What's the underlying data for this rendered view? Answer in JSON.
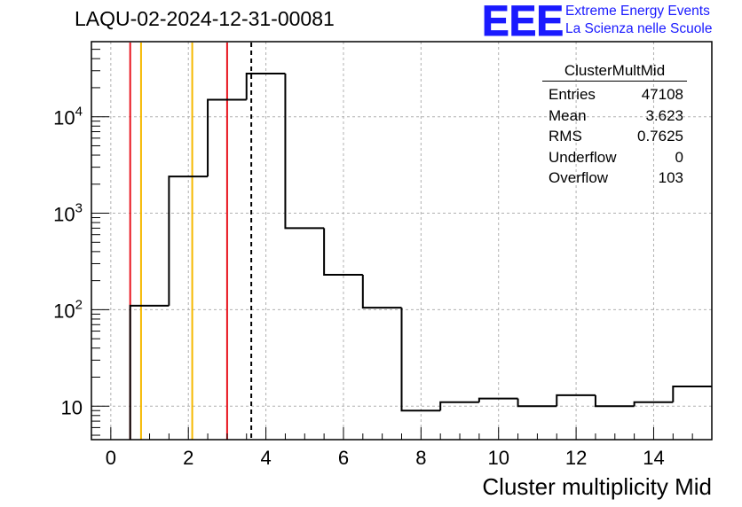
{
  "title": "LAQU-02-2024-12-31-00081",
  "logo": {
    "mark": "EEE",
    "line1": "Extreme Energy Events",
    "line2": "La Scienza nelle Scuole",
    "color": "#1a1aff"
  },
  "stats_box": {
    "name": "ClusterMultMid",
    "rows": [
      {
        "label": "Entries",
        "value": "47108"
      },
      {
        "label": "Mean",
        "value": "3.623"
      },
      {
        "label": "RMS",
        "value": "0.7625"
      },
      {
        "label": "Underflow",
        "value": "0"
      },
      {
        "label": "Overflow",
        "value": "103"
      }
    ]
  },
  "chart_data": {
    "type": "histogram",
    "xlabel": "Cluster multiplicity Mid",
    "ylabel": "",
    "xlim": [
      -0.5,
      15.5
    ],
    "ylim": [
      4.5,
      60000
    ],
    "y_scale": "log",
    "grid": true,
    "x_ticks": [
      0,
      2,
      4,
      6,
      8,
      10,
      12,
      14
    ],
    "y_ticks": [
      {
        "value": 10,
        "base": "10",
        "exp": ""
      },
      {
        "value": 100,
        "base": "10",
        "exp": "2"
      },
      {
        "value": 1000,
        "base": "10",
        "exp": "3"
      },
      {
        "value": 10000,
        "base": "10",
        "exp": "4"
      }
    ],
    "bins": [
      {
        "low": 0.5,
        "high": 1.5,
        "count": 110
      },
      {
        "low": 1.5,
        "high": 2.5,
        "count": 2400
      },
      {
        "low": 2.5,
        "high": 3.5,
        "count": 15000
      },
      {
        "low": 3.5,
        "high": 4.5,
        "count": 28000
      },
      {
        "low": 4.5,
        "high": 5.5,
        "count": 700
      },
      {
        "low": 5.5,
        "high": 6.5,
        "count": 230
      },
      {
        "low": 6.5,
        "high": 7.5,
        "count": 105
      },
      {
        "low": 7.5,
        "high": 8.5,
        "count": 9
      },
      {
        "low": 8.5,
        "high": 9.5,
        "count": 11
      },
      {
        "low": 9.5,
        "high": 10.5,
        "count": 12
      },
      {
        "low": 10.5,
        "high": 11.5,
        "count": 10
      },
      {
        "low": 11.5,
        "high": 12.5,
        "count": 13
      },
      {
        "low": 12.5,
        "high": 13.5,
        "count": 10
      },
      {
        "low": 13.5,
        "high": 14.5,
        "count": 11
      },
      {
        "low": 14.5,
        "high": 15.5,
        "count": 16
      }
    ],
    "vertical_lines": [
      {
        "x": 0.5,
        "color": "#e8141e",
        "style": "solid"
      },
      {
        "x": 0.78,
        "color": "#f5b800",
        "style": "solid"
      },
      {
        "x": 2.1,
        "color": "#f5b800",
        "style": "solid"
      },
      {
        "x": 3.0,
        "color": "#e8141e",
        "style": "solid"
      },
      {
        "x": 3.623,
        "color": "#000000",
        "style": "dashed"
      }
    ]
  }
}
